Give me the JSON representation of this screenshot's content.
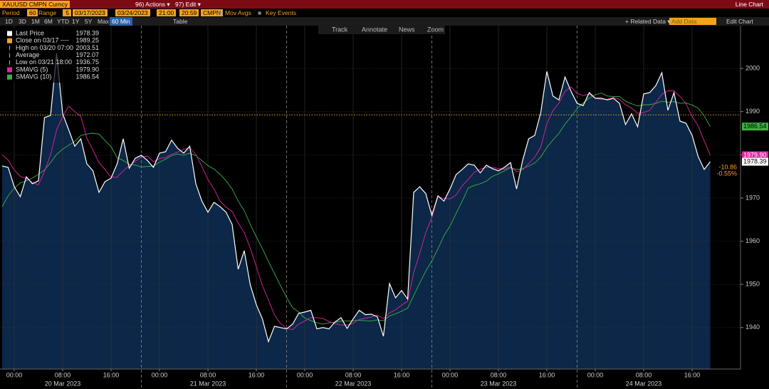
{
  "toolbar": {
    "security": "XAUUSD CMPN Curncy",
    "menu": [
      "96) Actions ▾",
      "97) Edit ▾"
    ],
    "view": "Line Chart",
    "period_label": "Period",
    "period": "60",
    "range_label": "Range",
    "range": "5",
    "start_date": "03/17/2023",
    "end_date": "03/24/2023",
    "start_time": "21:00",
    "end_time": "20:59",
    "source": "CMPN",
    "mov_avgs": "Mov Avgs",
    "key_events": "Key Events",
    "spans": [
      "1D",
      "3D",
      "1M",
      "6M",
      "YTD",
      "1Y",
      "5Y",
      "Max"
    ],
    "interval": "60 Min",
    "table": "Table",
    "related": "+ Related Data ▾",
    "add_data": "Add Data",
    "edit_chart": "Edit Chart",
    "tools": [
      "Track",
      "Annotate",
      "News",
      "Zoom"
    ]
  },
  "chart_data": {
    "type": "line",
    "categories": [
      null,
      null,
      "00:00",
      null,
      null,
      null,
      null,
      null,
      null,
      null,
      "08:00",
      null,
      null,
      null,
      null,
      null,
      null,
      null,
      "16:00",
      null,
      null,
      null,
      null,
      null,
      null,
      null,
      "00:00",
      null,
      null,
      null,
      null,
      null,
      null,
      null,
      "08:00",
      null,
      null,
      null,
      null,
      null,
      null,
      null,
      "16:00",
      null,
      null,
      null,
      null,
      null,
      null,
      null,
      "00:00",
      null,
      null,
      null,
      null,
      null,
      null,
      null,
      "08:00",
      null,
      null,
      null,
      null,
      null,
      null,
      null,
      "16:00",
      null,
      null,
      null,
      null,
      null,
      null,
      null,
      "00:00",
      null,
      null,
      null,
      null,
      null,
      null,
      null,
      "08:00",
      null,
      null,
      null,
      null,
      null,
      null,
      null,
      "16:00",
      null,
      null,
      null,
      null,
      null,
      null,
      null,
      "00:00",
      null,
      null,
      null,
      null,
      null,
      null,
      null,
      "08:00",
      null,
      null,
      null,
      null,
      null,
      null,
      null,
      "16:00",
      null,
      null,
      null
    ],
    "x_dates": [
      null,
      null,
      null,
      null,
      null,
      null,
      null,
      null,
      null,
      null,
      "20 Mar 2023",
      null,
      null,
      null,
      null,
      null,
      null,
      null,
      null,
      null,
      null,
      null,
      null,
      null,
      null,
      null,
      null,
      null,
      null,
      null,
      null,
      null,
      null,
      null,
      "21 Mar 2023",
      null,
      null,
      null,
      null,
      null,
      null,
      null,
      null,
      null,
      null,
      null,
      null,
      null,
      null,
      null,
      null,
      null,
      null,
      null,
      null,
      null,
      null,
      null,
      "22 Mar 2023",
      null,
      null,
      null,
      null,
      null,
      null,
      null,
      null,
      null,
      null,
      null,
      null,
      null,
      null,
      null,
      null,
      null,
      null,
      null,
      null,
      null,
      null,
      null,
      "23 Mar 2023",
      null,
      null,
      null,
      null,
      null,
      null,
      null,
      null,
      null,
      null,
      null,
      null,
      null,
      null,
      null,
      null,
      null,
      null,
      null,
      null,
      null,
      null,
      null,
      "24 Mar 2023",
      null,
      null,
      null,
      null,
      null,
      null,
      null,
      null,
      null,
      null,
      null
    ],
    "series": [
      {
        "name": "Last Price",
        "color": "#ffffff",
        "flag_text_color": "#000000",
        "legend_value": 1978.39,
        "values": [
          1977.4,
          1977.1,
          1972.6,
          1970.3,
          1974.9,
          1973.3,
          1974.0,
          1988.6,
          1989.1,
          2003.51,
          1989.5,
          1985.8,
          1982.0,
          1983.7,
          1977.9,
          1976.3,
          1971.3,
          1973.8,
          1974.6,
          1977.9,
          1983.7,
          1976.9,
          1979.2,
          1979.9,
          1978.7,
          1977.1,
          1980.4,
          1980.7,
          1983.4,
          1981.5,
          1980.4,
          1982.0,
          1973.3,
          1969.3,
          1966.7,
          1969.0,
          1968.0,
          1966.7,
          1963.9,
          1953.5,
          1957.8,
          1949.9,
          1945.3,
          1942.0,
          1936.75,
          1940.3,
          1940.0,
          1939.7,
          1940.8,
          1943.3,
          1943.6,
          1944.0,
          1939.7,
          1940.0,
          1939.7,
          1941.3,
          1942.3,
          1939.8,
          1942.0,
          1944.0,
          1943.0,
          1943.1,
          1942.5,
          1938.0,
          1950.2,
          1946.9,
          1948.6,
          1946.6,
          1971.3,
          1972.6,
          1971.0,
          1966.0,
          1970.5,
          1969.3,
          1972.1,
          1975.4,
          1976.6,
          1977.9,
          1977.6,
          1975.8,
          1977.6,
          1976.8,
          1976.3,
          1977.1,
          1978.2,
          1972.1,
          1978.7,
          1983.7,
          1984.5,
          1989.8,
          1999.3,
          1993.6,
          1992.7,
          1998.0,
          1994.7,
          1991.9,
          1991.4,
          1994.4,
          1993.1,
          1993.1,
          1992.7,
          1993.1,
          1991.9,
          1987.0,
          1989.5,
          1986.5,
          1994.1,
          1994.4,
          1996.0,
          1999.0,
          1990.3,
          1994.4,
          1987.8,
          1987.3,
          1984.5,
          1979.6,
          1976.6,
          1978.39
        ]
      },
      {
        "name": "SMAVG (5)",
        "color": "#e0249e",
        "flag_text_color": "#ffffff",
        "legend_value": 1979.9,
        "legend_value_label": "1979.90",
        "values": [
          1980.0,
          1978.8,
          1976.5,
          1975.0,
          1974.5,
          1973.6,
          1973.0,
          1976.2,
          1980.0,
          1985.7,
          1988.9,
          1991.3,
          1990.0,
          1988.9,
          1983.8,
          1981.1,
          1978.2,
          1976.6,
          1974.8,
          1974.8,
          1976.3,
          1977.4,
          1978.5,
          1979.5,
          1979.7,
          1978.4,
          1979.1,
          1979.4,
          1980.1,
          1980.6,
          1981.3,
          1981.6,
          1980.1,
          1977.3,
          1974.3,
          1972.1,
          1969.3,
          1967.9,
          1966.9,
          1964.2,
          1962.0,
          1958.4,
          1954.1,
          1949.7,
          1946.4,
          1942.9,
          1940.9,
          1939.8,
          1939.5,
          1940.8,
          1941.5,
          1942.3,
          1942.3,
          1942.1,
          1941.4,
          1940.9,
          1940.6,
          1940.6,
          1941.0,
          1941.9,
          1942.2,
          1942.4,
          1942.9,
          1942.1,
          1943.4,
          1944.1,
          1945.2,
          1946.1,
          1952.7,
          1957.2,
          1962.0,
          1965.5,
          1970.3,
          1969.9,
          1969.8,
          1970.7,
          1972.8,
          1974.3,
          1975.9,
          1976.7,
          1977.1,
          1977.1,
          1976.8,
          1976.7,
          1977.2,
          1976.1,
          1976.5,
          1978.0,
          1979.4,
          1981.8,
          1987.2,
          1990.2,
          1992.0,
          1994.7,
          1995.7,
          1994.2,
          1993.7,
          1994.1,
          1993.1,
          1992.8,
          1992.9,
          1993.3,
          1992.8,
          1991.6,
          1990.8,
          1989.6,
          1989.8,
          1990.3,
          1992.1,
          1994.0,
          1994.8,
          1994.8,
          1993.5,
          1991.8,
          1988.9,
          1986.7,
          1983.2,
          1979.9
        ]
      },
      {
        "name": "SMAVG (10)",
        "color": "#3cb043",
        "flag_text_color": "#000000",
        "legend_value": 1986.54,
        "values": [
          1968.0,
          1970.5,
          1972.3,
          1973.5,
          1974.0,
          1974.6,
          1975.5,
          1976.5,
          1978.2,
          1980.1,
          1981.3,
          1982.2,
          1983.1,
          1984.5,
          1984.8,
          1985.0,
          1984.8,
          1983.3,
          1981.9,
          1979.3,
          1978.7,
          1977.8,
          1977.6,
          1977.2,
          1977.3,
          1977.4,
          1978.3,
          1979.0,
          1979.8,
          1980.2,
          1979.9,
          1980.4,
          1979.8,
          1978.7,
          1977.5,
          1976.7,
          1975.5,
          1974.0,
          1972.1,
          1969.3,
          1967.1,
          1963.9,
          1961.0,
          1958.3,
          1955.3,
          1952.5,
          1949.7,
          1947.0,
          1944.6,
          1943.6,
          1942.2,
          1941.6,
          1941.1,
          1940.8,
          1941.1,
          1941.2,
          1941.5,
          1941.5,
          1941.6,
          1941.7,
          1941.6,
          1941.5,
          1941.8,
          1941.6,
          1942.7,
          1943.2,
          1943.8,
          1944.5,
          1947.4,
          1950.3,
          1953.1,
          1955.4,
          1958.2,
          1961.3,
          1963.5,
          1966.4,
          1969.2,
          1972.3,
          1972.9,
          1973.3,
          1973.9,
          1975.0,
          1975.6,
          1976.3,
          1977.0,
          1976.6,
          1976.8,
          1977.4,
          1978.1,
          1979.5,
          1981.7,
          1983.4,
          1985.0,
          1987.1,
          1988.8,
          1990.7,
          1992.0,
          1993.1,
          1993.9,
          1994.3,
          1993.6,
          1993.5,
          1993.5,
          1992.4,
          1991.8,
          1991.3,
          1991.6,
          1991.6,
          1991.9,
          1992.4,
          1992.2,
          1992.3,
          1991.9,
          1992.0,
          1991.5,
          1990.8,
          1989.0,
          1986.54
        ]
      }
    ],
    "legend_items": [
      {
        "label": "Close on 03/17 ----",
        "value": 1989.25,
        "color": "#f7a21b",
        "marker": "square"
      },
      {
        "label": "High on 03/20 07:00",
        "value": 2003.51,
        "color": "#aaaaaa",
        "marker": "line"
      },
      {
        "label": "Average",
        "value": 1972.07,
        "color": "#aaaaaa",
        "marker": "line"
      },
      {
        "label": "Low on 03/21 18:00",
        "value": 1936.75,
        "color": "#aaaaaa",
        "marker": "line"
      }
    ],
    "change": -10.86,
    "change_pct": -0.55,
    "change_pct_label": "-0.55%",
    "change_color": "#f7a21b",
    "area_color": "#0c2747",
    "ylim": [
      1930.4,
      2009.9
    ],
    "yticks": [
      1940,
      1950,
      1960,
      1970,
      1980,
      1990,
      2000
    ],
    "grid": true
  }
}
